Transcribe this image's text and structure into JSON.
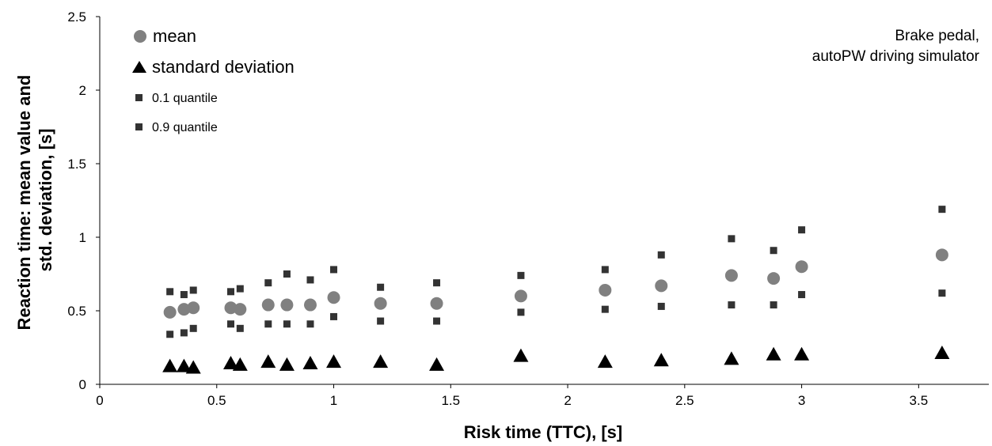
{
  "chart_data": {
    "type": "scatter",
    "xlabel": "Risk time (TTC), [s]",
    "ylabel_lines": [
      "Reaction time: mean value and",
      "std. deviation, [s]"
    ],
    "xlim": [
      0,
      3.8
    ],
    "ylim": [
      0,
      2.5
    ],
    "x_ticks": [
      {
        "value": 0,
        "label": "0"
      },
      {
        "value": 0.5,
        "label": "0.5"
      },
      {
        "value": 1,
        "label": "1"
      },
      {
        "value": 1.5,
        "label": "1.5"
      },
      {
        "value": 2,
        "label": "2"
      },
      {
        "value": 2.5,
        "label": "2.5"
      },
      {
        "value": 3,
        "label": "3"
      },
      {
        "value": 3.5,
        "label": "3.5"
      }
    ],
    "y_ticks": [
      {
        "value": 0,
        "label": "0"
      },
      {
        "value": 0.5,
        "label": "0.5"
      },
      {
        "value": 1,
        "label": "1"
      },
      {
        "value": 1.5,
        "label": "1.5"
      },
      {
        "value": 2,
        "label": "2"
      },
      {
        "value": 2.5,
        "label": "2.5"
      }
    ],
    "grid": false,
    "legend_position": "top-left",
    "annotation_lines": [
      "Brake pedal,",
      "autoPW driving simulator"
    ],
    "x": [
      0.3,
      0.36,
      0.4,
      0.56,
      0.6,
      0.72,
      0.8,
      0.9,
      1.0,
      1.2,
      1.44,
      1.8,
      2.16,
      2.4,
      2.7,
      2.88,
      3.0,
      3.6
    ],
    "series": [
      {
        "name": "mean",
        "marker": "circle",
        "color": "#808080",
        "values": [
          0.49,
          0.51,
          0.52,
          0.52,
          0.51,
          0.54,
          0.54,
          0.54,
          0.59,
          0.55,
          0.55,
          0.6,
          0.64,
          0.67,
          0.74,
          0.72,
          0.8,
          0.88
        ]
      },
      {
        "name": "standard deviation",
        "marker": "triangle",
        "color": "#000000",
        "values": [
          0.12,
          0.12,
          0.11,
          0.14,
          0.13,
          0.15,
          0.13,
          0.14,
          0.15,
          0.15,
          0.13,
          0.19,
          0.15,
          0.16,
          0.17,
          0.2,
          0.2,
          0.21
        ]
      },
      {
        "name": "0.1 quantile",
        "marker": "square",
        "color": "#333333",
        "values": [
          0.34,
          0.35,
          0.38,
          0.41,
          0.38,
          0.41,
          0.41,
          0.41,
          0.46,
          0.43,
          0.43,
          0.49,
          0.51,
          0.53,
          0.54,
          0.54,
          0.61,
          0.62
        ]
      },
      {
        "name": "0.9 quantile",
        "marker": "square",
        "color": "#333333",
        "values": [
          0.63,
          0.61,
          0.64,
          0.63,
          0.65,
          0.69,
          0.75,
          0.71,
          0.78,
          0.66,
          0.69,
          0.74,
          0.78,
          0.88,
          0.99,
          0.91,
          1.05,
          1.19
        ]
      }
    ]
  }
}
